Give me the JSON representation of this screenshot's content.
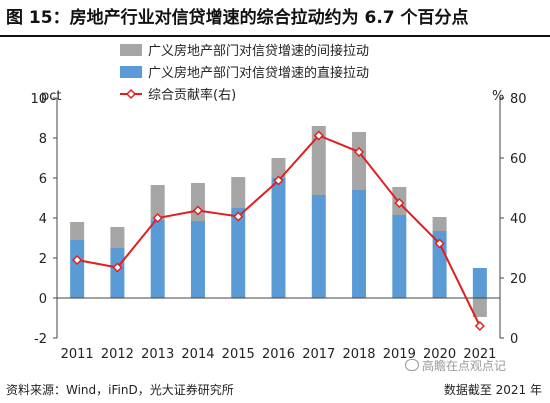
{
  "title": "图 15：房地产行业对信贷增速的综合拉动约为 6.7 个百分点",
  "source": "资料来源：Wind，iFinD，光大证券研究所",
  "date_note": "数据截至 2021 年",
  "watermark": "高瞻在点观点记",
  "chart_data": {
    "type": "bar",
    "categories": [
      "2011",
      "2012",
      "2013",
      "2014",
      "2015",
      "2016",
      "2017",
      "2018",
      "2019",
      "2020",
      "2021"
    ],
    "series": [
      {
        "name": "广义房地产部门对信贷增速的间接拉动",
        "kind": "stacked-bar",
        "color": "#a6a6a6",
        "values": [
          0.9,
          1.05,
          1.75,
          1.9,
          1.55,
          1.0,
          3.45,
          2.9,
          1.4,
          0.7,
          -0.95
        ]
      },
      {
        "name": "广义房地产部门对信贷增速的直接拉动",
        "kind": "stacked-bar",
        "color": "#5b9bd5",
        "values": [
          2.9,
          2.5,
          3.9,
          3.85,
          4.5,
          6.0,
          5.15,
          5.4,
          4.15,
          3.35,
          1.5
        ]
      },
      {
        "name": "综合贡献率(右)",
        "kind": "line",
        "axis": "right",
        "color": "#e02020",
        "values": [
          26,
          23.5,
          40,
          42.5,
          40.5,
          52.5,
          67.5,
          62,
          45,
          31.5,
          4
        ]
      }
    ],
    "y_left": {
      "unit": "pct",
      "min": -2,
      "max": 10,
      "ticks": [
        -2,
        0,
        2,
        4,
        6,
        8,
        10
      ]
    },
    "y_right": {
      "unit": "%",
      "min": 0,
      "max": 80,
      "ticks": [
        0,
        20,
        40,
        60,
        80
      ]
    },
    "legend_position": "top-left",
    "grid": false
  }
}
